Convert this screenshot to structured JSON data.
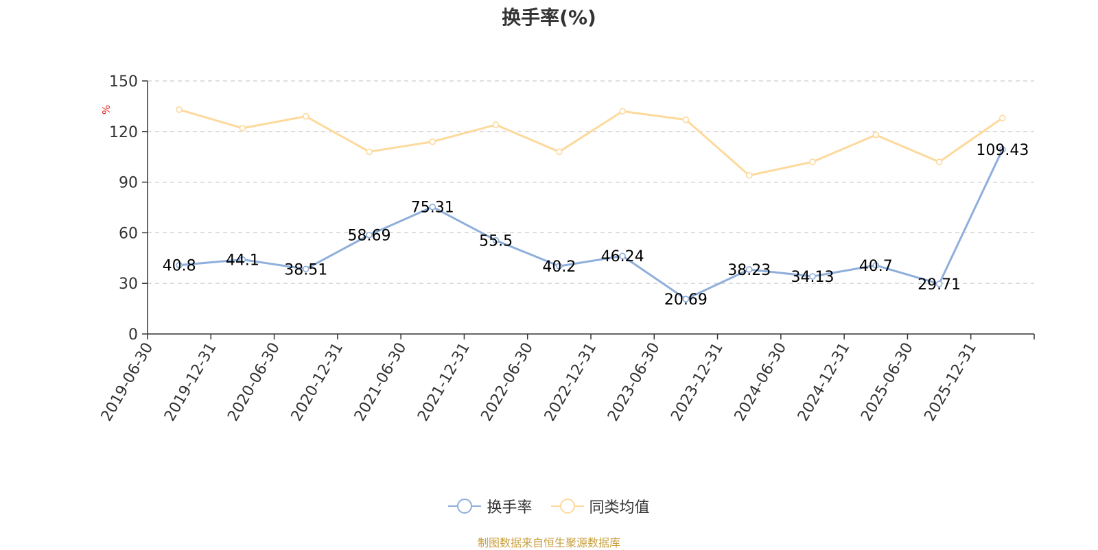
{
  "chart_data": {
    "type": "line",
    "title": "换手率(%)",
    "ylabel": "%",
    "xlabel": "",
    "ylim": [
      0,
      150
    ],
    "yticks": [
      0,
      30,
      60,
      90,
      120,
      150
    ],
    "grid": true,
    "legend_position": "bottom",
    "categories": [
      "2019-06-30",
      "2019-12-31",
      "2020-06-30",
      "2020-12-31",
      "2021-06-30",
      "2021-12-31",
      "2022-06-30",
      "2022-12-31",
      "2023-06-30",
      "2023-12-31",
      "2024-06-30",
      "2024-12-31",
      "2025-06-30",
      "2025-12-31"
    ],
    "series": [
      {
        "name": "换手率",
        "color": "#8eaedb",
        "labels": true,
        "values": [
          40.8,
          44.1,
          38.51,
          58.69,
          75.31,
          55.5,
          40.2,
          46.24,
          20.69,
          38.23,
          34.13,
          40.7,
          29.71,
          109.43
        ]
      },
      {
        "name": "同类均值",
        "color": "#fdd99b",
        "labels": false,
        "values": [
          133,
          122,
          129,
          108,
          114,
          124,
          108,
          132,
          127,
          94,
          102,
          118,
          102,
          128
        ]
      }
    ]
  },
  "source": "制图数据来自恒生聚源数据库"
}
